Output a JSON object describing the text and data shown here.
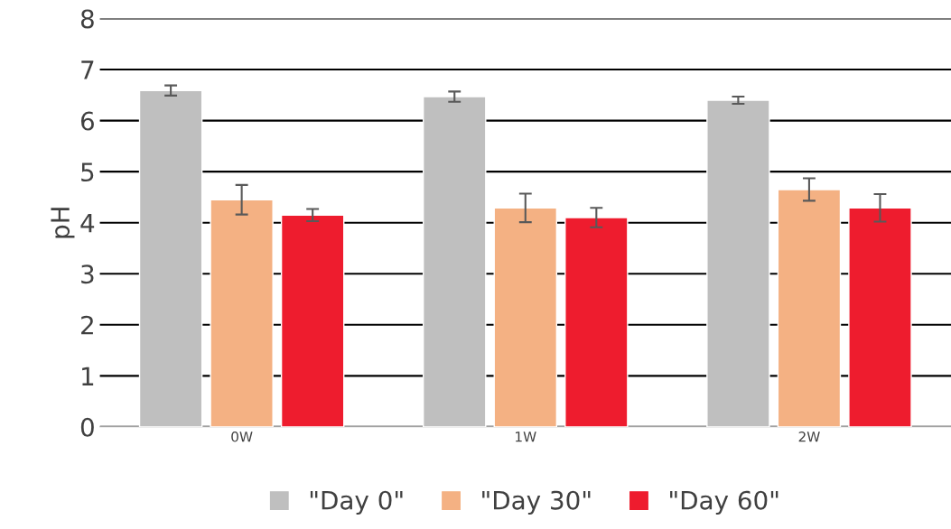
{
  "chart_data": {
    "type": "bar",
    "ylabel": "pH",
    "categories": [
      "0W",
      "1W",
      "2W"
    ],
    "series": [
      {
        "name": "\"Day 0\"",
        "color": "#bfbfbf",
        "values": [
          6.59,
          6.47,
          6.4
        ],
        "errors": [
          0.1,
          0.1,
          0.07
        ]
      },
      {
        "name": "\"Day 30\"",
        "color": "#f4b183",
        "values": [
          4.45,
          4.29,
          4.65
        ],
        "errors": [
          0.29,
          0.28,
          0.22
        ]
      },
      {
        "name": "\"Day 60\"",
        "color": "#ee1c2e",
        "values": [
          4.15,
          4.1,
          4.29
        ],
        "errors": [
          0.12,
          0.19,
          0.27
        ]
      }
    ],
    "ylim": [
      0,
      8
    ],
    "yticks": [
      0,
      1,
      2,
      3,
      4,
      5,
      6,
      7,
      8
    ],
    "grid": "y",
    "legend": "bottom"
  }
}
